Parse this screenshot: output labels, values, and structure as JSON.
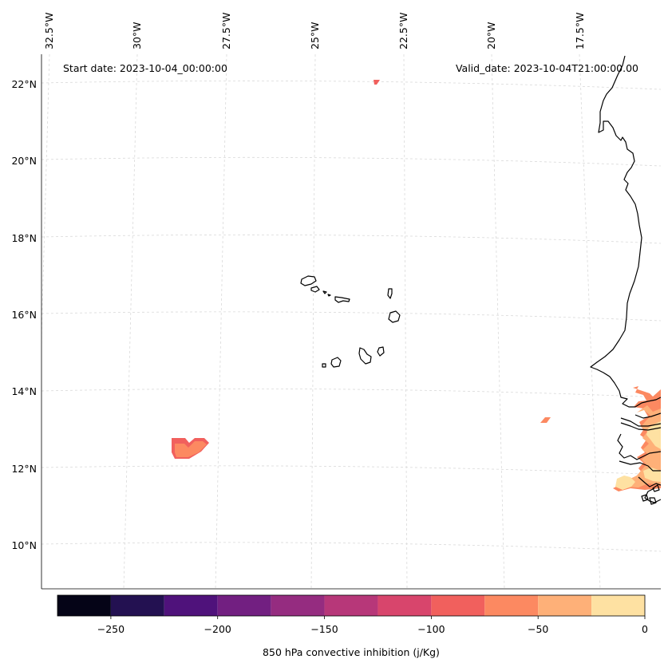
{
  "map": {
    "start_label": "Start date: 2023-10-04_00:00:00",
    "valid_label": "Valid_date: 2023-10-04T21:00:00.00",
    "longitude_labels": [
      "32.5°W",
      "30°W",
      "27.5°W",
      "25°W",
      "22.5°W",
      "20°W",
      "17.5°W"
    ],
    "latitude_labels": [
      "22°N",
      "20°N",
      "18°N",
      "16°N",
      "14°N",
      "12°N",
      "10°N"
    ],
    "land_outline_color": "#000000",
    "gridline_color": "#cccccc"
  },
  "colorbar": {
    "label": "850 hPa convective inhibition (j/Kg)",
    "tick_labels": [
      "−250",
      "−200",
      "−150",
      "−100",
      "−50",
      "0"
    ],
    "levels": [
      -275,
      -250,
      -225,
      -200,
      -175,
      -150,
      -125,
      -100,
      -75,
      -50,
      -25,
      0
    ],
    "colors": [
      "#050417",
      "#231151",
      "#4f127b",
      "#721f81",
      "#952c80",
      "#b73779",
      "#d8456c",
      "#f1605d",
      "#fc8961",
      "#feb078",
      "#fee1a2"
    ]
  }
}
